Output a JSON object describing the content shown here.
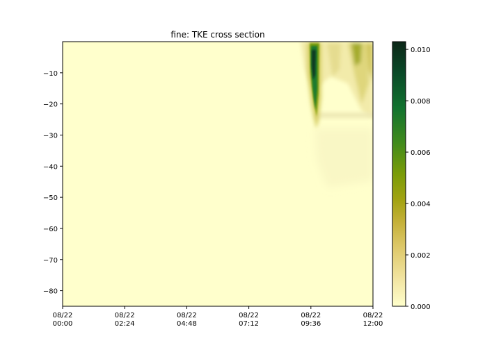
{
  "chart_data": {
    "type": "heatmap",
    "title": "fine: TKE cross section",
    "xlabel": "",
    "ylabel": "",
    "x": {
      "range": [
        "08/22 00:00",
        "08/22 12:00"
      ],
      "tick_labels": [
        [
          "08/22",
          "00:00"
        ],
        [
          "08/22",
          "02:24"
        ],
        [
          "08/22",
          "04:48"
        ],
        [
          "08/22",
          "07:12"
        ],
        [
          "08/22",
          "09:36"
        ],
        [
          "08/22",
          "12:00"
        ]
      ]
    },
    "y": {
      "range": [
        -85,
        0
      ],
      "ticks": [
        -10,
        -20,
        -30,
        -40,
        -50,
        -60,
        -70,
        -80
      ],
      "tick_labels": [
        "−10",
        "−20",
        "−30",
        "−40",
        "−50",
        "−60",
        "−70",
        "−80"
      ]
    },
    "colorbar": {
      "range": [
        0,
        0.0103
      ],
      "ticks": [
        0,
        0.002,
        0.004,
        0.006,
        0.008,
        0.01
      ],
      "tick_labels": [
        "0.000",
        "0.002",
        "0.004",
        "0.006",
        "0.008",
        "0.010"
      ],
      "colormap": [
        "#ffffcc",
        "#f2e5a3",
        "#dec96b",
        "#c4b038",
        "#a3a312",
        "#7a9c08",
        "#3f8a1c",
        "#11722f",
        "#0a4a28",
        "#0c2718"
      ]
    },
    "features": [
      {
        "name": "main-plume",
        "time_start": "08/22 09:36",
        "time_end": "08/22 09:58",
        "depth_top": 0,
        "depth_bottom": -26,
        "peak_value": 0.0103
      },
      {
        "name": "secondary-plumes",
        "time_start": "08/22 11:00",
        "time_end": "08/22 12:00",
        "depth_top": 0,
        "depth_bottom": -24,
        "peak_value": 0.004
      },
      {
        "name": "mixed-layer-base",
        "time_start": "08/22 09:36",
        "time_end": "08/22 12:00",
        "depth": -25,
        "peak_value": 0.0005
      }
    ]
  }
}
